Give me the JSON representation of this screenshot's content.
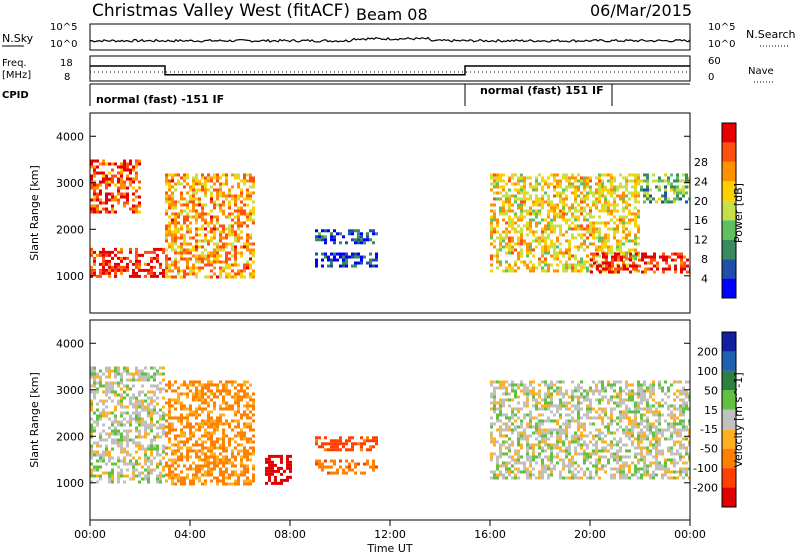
{
  "header": {
    "site": "Christmas Valley West (fitACF)",
    "beam": "Beam 08",
    "date": "06/Mar/2015"
  },
  "noise_panel": {
    "left_label": "N.Sky",
    "right_label": "N.Search",
    "left_ticks": [
      "10^5",
      "10^0"
    ],
    "right_ticks": [
      "10^5",
      "10^0"
    ]
  },
  "freq_panel": {
    "left_label_1": "Freq.",
    "left_label_2": "[MHz]",
    "right_label": "Nave",
    "left_ticks": [
      "18",
      "8"
    ],
    "right_ticks": [
      "60",
      "0"
    ],
    "freq_segments": [
      {
        "start": "00:00",
        "end": "03:00",
        "value": 14
      },
      {
        "start": "03:00",
        "end": "15:00",
        "value": 10.5
      },
      {
        "start": "15:00",
        "end": "24:00",
        "value": 14
      }
    ]
  },
  "cpid_panel": {
    "label": "CPID",
    "modes": [
      {
        "text": "normal (fast) -151 IF",
        "start": "00:00",
        "end": "15:00"
      },
      {
        "text": "normal (fast) 151 IF",
        "start": "15:00",
        "end": "21:00"
      }
    ]
  },
  "x_axis": {
    "label": "Time UT",
    "ticks": [
      "00:00",
      "04:00",
      "08:00",
      "12:00",
      "16:00",
      "20:00",
      "00:00"
    ]
  },
  "colors": {
    "power": [
      "#0000ff",
      "#1f4fa8",
      "#3a8a60",
      "#5fc05f",
      "#c8e048",
      "#ffd000",
      "#ff9000",
      "#ff5010",
      "#e80000"
    ],
    "velocity": [
      "#1020a0",
      "#2060b0",
      "#2e8040",
      "#60c040",
      "#c0c0c0",
      "#ffb020",
      "#ff8000",
      "#ff4000",
      "#e00000"
    ]
  },
  "chart_data": [
    {
      "type": "heatmap",
      "title": "Power",
      "ylabel": "Slant Range [km]",
      "xlabel": "",
      "ylim": [
        200,
        4500
      ],
      "xlim": [
        "00:00",
        "24:00"
      ],
      "colorbar": {
        "label": "Power [dB]",
        "ticks": [
          "4",
          "8",
          "12",
          "16",
          "20",
          "24",
          "28"
        ]
      },
      "regions": [
        {
          "name": "dawn-band",
          "t": [
            0.0,
            3.0
          ],
          "r": [
            1000,
            1600
          ],
          "level": 0.95
        },
        {
          "name": "early-morning-upper",
          "t": [
            0.0,
            2.0
          ],
          "r": [
            2400,
            3500
          ],
          "level": 0.85
        },
        {
          "name": "early-rise",
          "t": [
            3.0,
            6.5
          ],
          "r": [
            1000,
            3200
          ],
          "level": 0.7
        },
        {
          "name": "midday-patch-a",
          "t": [
            9.0,
            11.5
          ],
          "r": [
            1700,
            2000
          ],
          "level": 0.15
        },
        {
          "name": "midday-patch-b",
          "t": [
            9.0,
            11.5
          ],
          "r": [
            1200,
            1500
          ],
          "level": 0.12
        },
        {
          "name": "evening-descent",
          "t": [
            16.0,
            22.0
          ],
          "r": [
            1100,
            3200
          ],
          "level": 0.6
        },
        {
          "name": "late-band",
          "t": [
            20.0,
            24.0
          ],
          "r": [
            1100,
            1500
          ],
          "level": 0.95
        },
        {
          "name": "late-upper",
          "t": [
            22.0,
            24.0
          ],
          "r": [
            2600,
            3200
          ],
          "level": 0.4
        }
      ]
    },
    {
      "type": "heatmap",
      "title": "Velocity",
      "ylabel": "Slant Range [km]",
      "xlabel": "Time UT",
      "ylim": [
        200,
        4500
      ],
      "xlim": [
        "00:00",
        "24:00"
      ],
      "colorbar": {
        "label": "Velocity [m s^-1]",
        "ticks": [
          "200",
          "100",
          "50",
          "15",
          "-15",
          "-50",
          "-100",
          "-200"
        ]
      },
      "regions": [
        {
          "name": "dawn-band-ground",
          "t": [
            0.0,
            3.0
          ],
          "r": [
            1000,
            3500
          ],
          "level": 0.0
        },
        {
          "name": "early-rise",
          "t": [
            3.0,
            6.5
          ],
          "r": [
            1000,
            3200
          ],
          "level": -60
        },
        {
          "name": "morning-patch",
          "t": [
            7.0,
            8.0
          ],
          "r": [
            1000,
            1600
          ],
          "level": -180
        },
        {
          "name": "midday-patch-a",
          "t": [
            9.0,
            11.5
          ],
          "r": [
            1700,
            2000
          ],
          "level": -120
        },
        {
          "name": "midday-patch-b",
          "t": [
            9.0,
            11.5
          ],
          "r": [
            1200,
            1500
          ],
          "level": -80
        },
        {
          "name": "evening-ground",
          "t": [
            16.0,
            24.0
          ],
          "r": [
            1100,
            3200
          ],
          "level": 0.0
        }
      ]
    }
  ]
}
